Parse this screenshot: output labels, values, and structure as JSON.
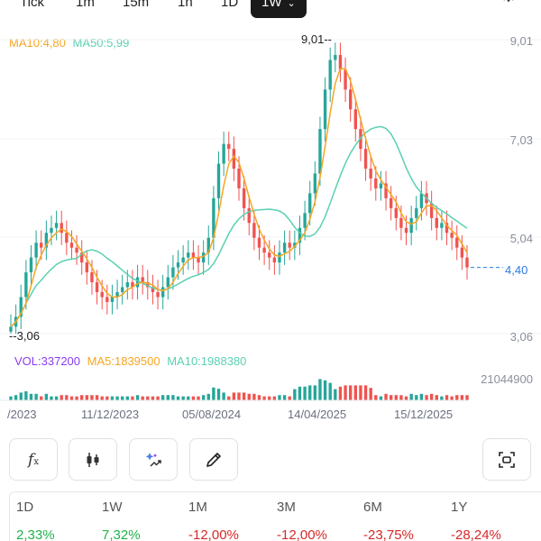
{
  "timeframes": [
    {
      "label": "Tick",
      "active": false
    },
    {
      "label": "1m",
      "active": false
    },
    {
      "label": "15m",
      "active": false
    },
    {
      "label": "1h",
      "active": false
    },
    {
      "label": "1D",
      "active": false
    },
    {
      "label": "1W",
      "active": true
    }
  ],
  "settings_icon": "gear-icon",
  "indicators": {
    "ma10": "MA10:4,80",
    "ma50": "MA50:5,99",
    "vol": "VOL:337200",
    "vol_ma5": "MA5:1839500",
    "vol_ma10": "MA10:1988380"
  },
  "price_axis": [
    "9,01",
    "7,03",
    "5,04",
    "3,06"
  ],
  "volume_axis_max": "21044900",
  "current_price": "4,40",
  "high_label": "9,01",
  "low_label": "3,06",
  "date_axis": [
    "/2023",
    "11/12/2023",
    "05/08/2024",
    "14/04/2025",
    "15/12/2025"
  ],
  "tools": [
    {
      "icon": "function-icon"
    },
    {
      "icon": "candlestick-icon"
    },
    {
      "icon": "ai-sparkle-icon"
    },
    {
      "icon": "pencil-icon"
    },
    {
      "icon": "screenshot-icon"
    }
  ],
  "performance": [
    {
      "period": "1D",
      "change": "2,33%",
      "positive": true
    },
    {
      "period": "1W",
      "change": "7,32%",
      "positive": true
    },
    {
      "period": "1M",
      "change": "-12,00%",
      "positive": false
    },
    {
      "period": "3M",
      "change": "-12,00%",
      "positive": false
    },
    {
      "period": "6M",
      "change": "-23,75%",
      "positive": false
    },
    {
      "period": "1Y",
      "change": "-28,24%",
      "positive": false
    }
  ],
  "colors": {
    "up": "#26a69a",
    "down": "#ef5350",
    "ma10": "#f5a623",
    "ma50": "#5bd0b3",
    "vol_label": "#8a3cf0",
    "current_price": "#2a7ae2",
    "positive": "#22b14c",
    "negative": "#d62828"
  },
  "chart_data": {
    "type": "candlestick",
    "price_range": [
      3.06,
      9.01
    ],
    "closes": [
      3.2,
      3.4,
      3.8,
      4.3,
      4.6,
      4.9,
      4.8,
      5.1,
      5.2,
      5.3,
      5.1,
      4.9,
      4.8,
      4.7,
      4.5,
      4.3,
      4.1,
      3.9,
      3.8,
      3.7,
      3.8,
      3.9,
      4.0,
      4.1,
      4.0,
      4.2,
      4.1,
      4.0,
      3.9,
      3.8,
      4.0,
      4.2,
      4.4,
      4.5,
      4.6,
      4.7,
      4.6,
      4.5,
      4.7,
      5.0,
      5.8,
      6.5,
      6.9,
      6.8,
      6.4,
      6.0,
      5.6,
      5.3,
      5.0,
      4.8,
      4.7,
      4.6,
      4.5,
      4.7,
      4.9,
      4.8,
      4.9,
      5.2,
      5.5,
      5.9,
      6.3,
      7.2,
      8.0,
      8.6,
      8.7,
      8.4,
      8.0,
      7.6,
      7.2,
      6.8,
      6.4,
      6.2,
      6.0,
      6.1,
      5.8,
      5.6,
      5.4,
      5.2,
      5.1,
      5.4,
      5.6,
      5.9,
      5.7,
      5.4,
      5.2,
      5.3,
      5.1,
      5.0,
      4.8,
      4.6,
      4.4
    ]
  }
}
